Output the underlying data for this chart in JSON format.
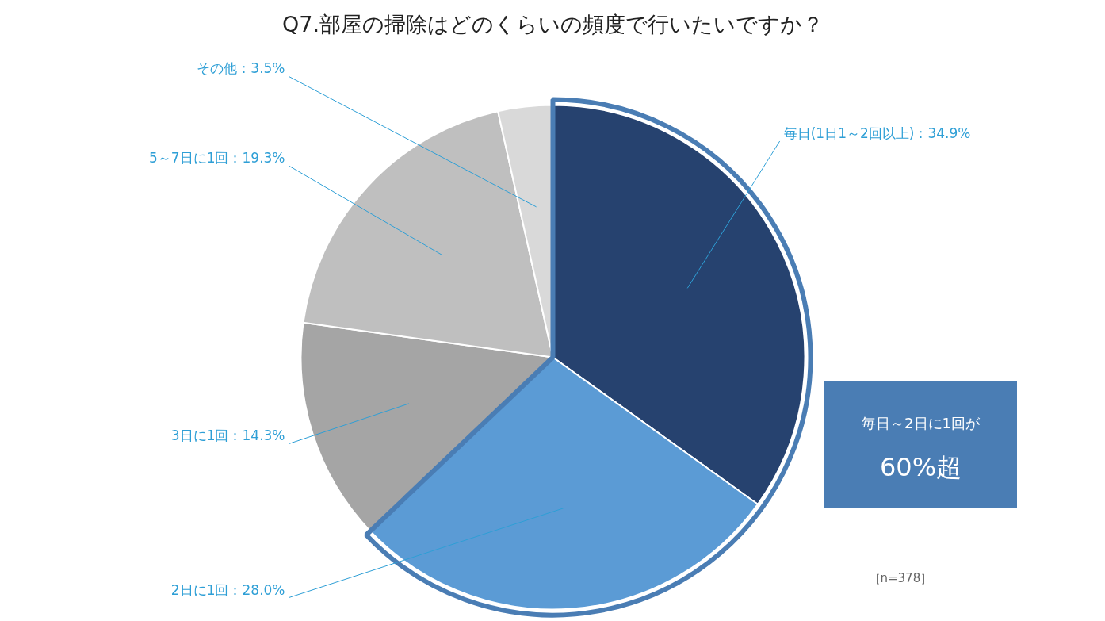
{
  "chart_data": {
    "type": "pie",
    "title": "Q7.部屋の掃除はどのくらいの頻度で行いたいですか？",
    "categories": [
      "毎日(1日1～2回以上)",
      "2日に1回",
      "3日に1回",
      "5～7日に1回",
      "その他"
    ],
    "values": [
      34.9,
      28.0,
      14.3,
      19.3,
      3.5
    ],
    "colors": [
      "#26426f",
      "#5b9bd5",
      "#a5a5a5",
      "#bfbfbf",
      "#d9d9d9"
    ],
    "value_labels": [
      "：34.9%",
      "：28.0%",
      "：14.3%",
      "：19.3%",
      "：3.5%"
    ],
    "annotations": [
      "毎日～2日に1回が\n60%超",
      "［n=378］"
    ]
  }
}
